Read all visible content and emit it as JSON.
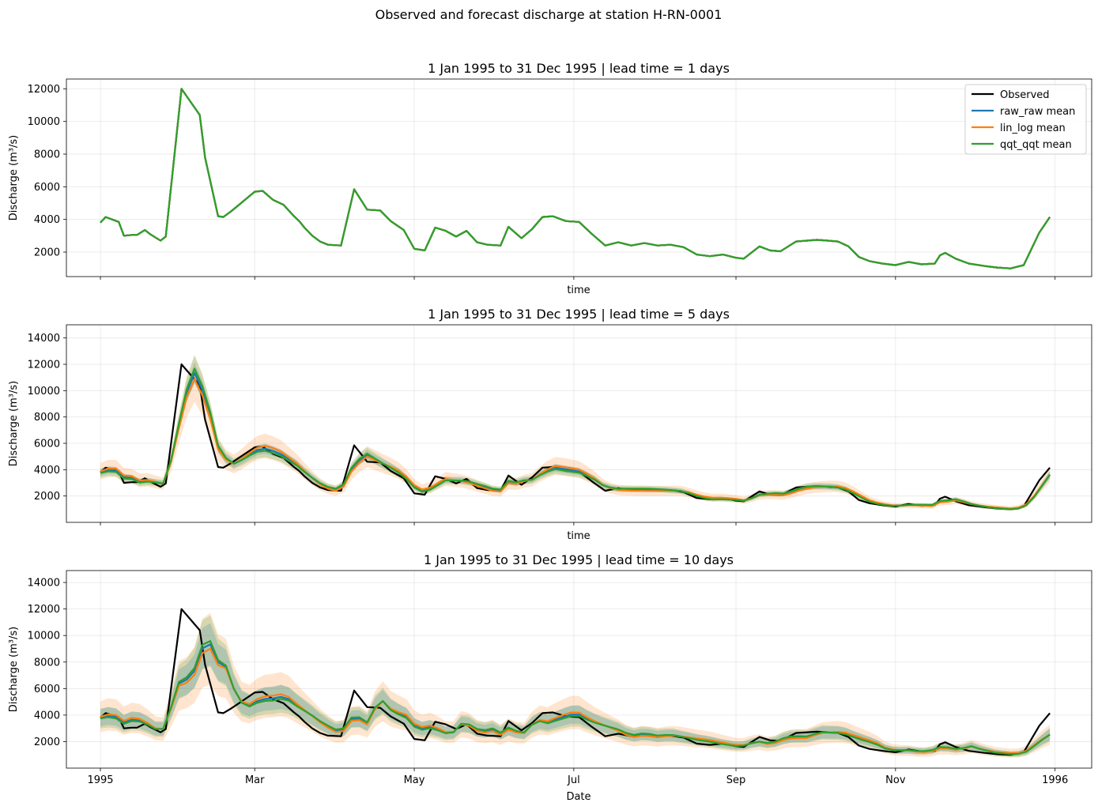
{
  "figure": {
    "suptitle": "Observed and forecast discharge at station H-RN-0001"
  },
  "chart_data": [
    {
      "type": "line",
      "title": "1 Jan 1995 to 31 Dec 1995 | lead time = 1 days",
      "xlabel": "time",
      "ylabel": "Discharge (m³/s)",
      "x_range": [
        "1994-12-19",
        "1996-01-15"
      ],
      "ylim": [
        500,
        12600
      ],
      "y_ticks": [
        2000,
        4000,
        6000,
        8000,
        10000,
        12000
      ],
      "x_ticks": [
        "1995-01-01",
        "1995-03-01",
        "1995-05-01",
        "1995-07-01",
        "1995-09-01",
        "1995-11-01",
        "1996-01-01"
      ],
      "x_tick_labels": [],
      "grid": true,
      "legend": "top-right",
      "lead_days": 1,
      "spread": {
        "raw_raw": 0,
        "lin_log": 0,
        "qqt_qqt": 0
      }
    },
    {
      "type": "line",
      "title": "1 Jan 1995 to 31 Dec 1995 | lead time = 5 days",
      "xlabel": "time",
      "ylabel": "Discharge (m³/s)",
      "x_range": [
        "1994-12-19",
        "1996-01-15"
      ],
      "ylim": [
        0,
        15000
      ],
      "y_ticks": [
        2000,
        4000,
        6000,
        8000,
        10000,
        12000,
        14000
      ],
      "x_ticks": [
        "1995-01-01",
        "1995-03-01",
        "1995-05-01",
        "1995-07-01",
        "1995-09-01",
        "1995-11-01",
        "1996-01-01"
      ],
      "x_tick_labels": [],
      "grid": true,
      "lead_days": 5,
      "spread": {
        "raw_raw": 0.07,
        "lin_log": 0.16,
        "qqt_qqt": 0.09
      }
    },
    {
      "type": "line",
      "title": "1 Jan 1995 to 31 Dec 1995 | lead time = 10 days",
      "xlabel": "Date",
      "ylabel": "Discharge (m³/s)",
      "x_range": [
        "1994-12-19",
        "1996-01-15"
      ],
      "ylim": [
        0,
        14900
      ],
      "y_ticks": [
        2000,
        4000,
        6000,
        8000,
        10000,
        12000,
        14000
      ],
      "x_ticks": [
        "1995-01-01",
        "1995-03-01",
        "1995-05-01",
        "1995-07-01",
        "1995-09-01",
        "1995-11-01",
        "1996-01-01"
      ],
      "x_tick_labels": [
        "1995",
        "Mar",
        "May",
        "Jul",
        "Sep",
        "Nov",
        "1996"
      ],
      "grid": true,
      "lead_days": 10,
      "spread": {
        "raw_raw": 0.17,
        "lin_log": 0.3,
        "qqt_qqt": 0.2
      }
    }
  ],
  "series": [
    {
      "name": "Observed",
      "key": "observed",
      "color": "#000000"
    },
    {
      "name": "raw_raw mean",
      "key": "raw_raw",
      "color": "#1f77b4"
    },
    {
      "name": "lin_log mean",
      "key": "lin_log",
      "color": "#ff7f0e"
    },
    {
      "name": "qqt_qqt mean",
      "key": "qqt_qqt",
      "color": "#2ca02c"
    }
  ],
  "observed": {
    "x": [
      "1995-01-01",
      "1995-01-03",
      "1995-01-08",
      "1995-01-10",
      "1995-01-13",
      "1995-01-15",
      "1995-01-18",
      "1995-01-20",
      "1995-01-24",
      "1995-01-26",
      "1995-02-01",
      "1995-02-08",
      "1995-02-10",
      "1995-02-15",
      "1995-02-17",
      "1995-02-20",
      "1995-02-23",
      "1995-03-01",
      "1995-03-04",
      "1995-03-08",
      "1995-03-12",
      "1995-03-16",
      "1995-03-18",
      "1995-03-20",
      "1995-03-23",
      "1995-03-26",
      "1995-03-29",
      "1995-04-03",
      "1995-04-08",
      "1995-04-13",
      "1995-04-18",
      "1995-04-22",
      "1995-04-27",
      "1995-05-01",
      "1995-05-05",
      "1995-05-09",
      "1995-05-13",
      "1995-05-17",
      "1995-05-21",
      "1995-05-25",
      "1995-05-29",
      "1995-06-03",
      "1995-06-06",
      "1995-06-11",
      "1995-06-15",
      "1995-06-19",
      "1995-06-23",
      "1995-06-28",
      "1995-07-03",
      "1995-07-08",
      "1995-07-13",
      "1995-07-18",
      "1995-07-23",
      "1995-07-28",
      "1995-08-02",
      "1995-08-07",
      "1995-08-12",
      "1995-08-17",
      "1995-08-22",
      "1995-08-27",
      "1995-09-01",
      "1995-09-04",
      "1995-09-10",
      "1995-09-14",
      "1995-09-18",
      "1995-09-24",
      "1995-10-02",
      "1995-10-06",
      "1995-10-10",
      "1995-10-14",
      "1995-10-18",
      "1995-10-22",
      "1995-10-27",
      "1995-11-01",
      "1995-11-06",
      "1995-11-11",
      "1995-11-16",
      "1995-11-18",
      "1995-11-20",
      "1995-11-24",
      "1995-11-29",
      "1995-12-05",
      "1995-12-10",
      "1995-12-15",
      "1995-12-20",
      "1995-12-23",
      "1995-12-26",
      "1995-12-30"
    ],
    "values": [
      3800,
      4150,
      3850,
      3000,
      3050,
      3050,
      3350,
      3100,
      2700,
      2950,
      12000,
      10400,
      7800,
      4200,
      4150,
      4500,
      4900,
      5700,
      5750,
      5200,
      4900,
      4200,
      3900,
      3500,
      3000,
      2650,
      2450,
      2400,
      5850,
      4600,
      4550,
      3900,
      3350,
      2200,
      2100,
      3500,
      3300,
      2950,
      3300,
      2600,
      2450,
      2400,
      3550,
      2850,
      3400,
      4150,
      4200,
      3900,
      3850,
      3100,
      2400,
      2600,
      2400,
      2550,
      2400,
      2450,
      2300,
      1850,
      1750,
      1850,
      1650,
      1600,
      2350,
      2100,
      2050,
      2650,
      2750,
      2700,
      2650,
      2350,
      1700,
      1450,
      1300,
      1200,
      1400,
      1250,
      1300,
      1800,
      1950,
      1600,
      1300,
      1150,
      1050,
      1000,
      1200,
      2200,
      3200,
      4150
    ]
  },
  "legend": {
    "observed": "Observed",
    "raw_raw": "raw_raw mean",
    "lin_log": "lin_log mean",
    "qqt_qqt": "qqt_qqt mean"
  }
}
